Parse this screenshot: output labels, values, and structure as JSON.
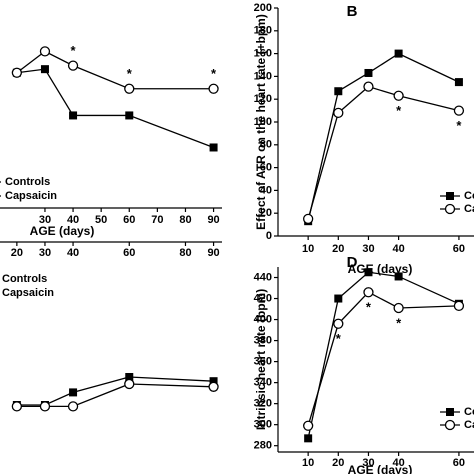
{
  "chart_data": [
    {
      "type": "line",
      "x": [
        20,
        30,
        40,
        60,
        90
      ],
      "xlim": [
        14,
        93
      ],
      "ylim": [
        0,
        100
      ],
      "xticks": [
        30,
        40,
        50,
        60,
        70,
        80,
        90
      ],
      "xlabel": "AGE (days)",
      "legend": "bottom-left",
      "series": [
        {
          "name": "Controls",
          "color": "#000000",
          "marker": "square",
          "values": [
            76,
            78,
            52,
            52,
            34
          ]
        },
        {
          "name": "Capsaicin",
          "color": "#000000",
          "marker": "circle",
          "values": [
            76,
            88,
            80,
            67,
            67
          ]
        }
      ],
      "annotations": [
        {
          "text": "*",
          "x": 40,
          "position": "above"
        },
        {
          "text": "*",
          "x": 60,
          "position": "above"
        },
        {
          "text": "*",
          "x": 90,
          "position": "above"
        }
      ]
    },
    {
      "type": "line",
      "label": "B",
      "x": [
        10,
        20,
        30,
        40,
        60
      ],
      "xlim": [
        0,
        65
      ],
      "ylim": [
        0,
        200
      ],
      "xticks": [
        10,
        20,
        30,
        40,
        60
      ],
      "yticks": [
        0,
        20,
        40,
        60,
        80,
        100,
        120,
        140,
        160,
        180,
        200
      ],
      "xlabel": "AGE (days)",
      "ylabel": "Effect of ATR on the heart rate (+bpm)",
      "legend": "bottom-right",
      "series": [
        {
          "name": "Controls",
          "color": "#000000",
          "marker": "square",
          "values": [
            13,
            127,
            143,
            160,
            135
          ]
        },
        {
          "name": "Capsaicin",
          "color": "#000000",
          "marker": "circle",
          "values": [
            15,
            108,
            131,
            123,
            110
          ]
        }
      ],
      "annotations": [
        {
          "text": "*",
          "x": 40,
          "position": "below"
        },
        {
          "text": "*",
          "x": 60,
          "position": "below"
        }
      ]
    },
    {
      "type": "line",
      "x": [
        20,
        30,
        40,
        60,
        90
      ],
      "xlim": [
        14,
        93
      ],
      "ylim": [
        0,
        100
      ],
      "xticks": [
        20,
        30,
        40,
        60,
        80,
        90
      ],
      "legend": "top-left",
      "series": [
        {
          "name": "Controls",
          "color": "#000000",
          "marker": "square",
          "values": [
            25,
            25,
            34,
            45,
            42
          ]
        },
        {
          "name": "Capsaicin",
          "color": "#000000",
          "marker": "circle",
          "values": [
            24,
            24,
            24,
            40,
            38
          ]
        }
      ]
    },
    {
      "type": "line",
      "label": "D",
      "x": [
        10,
        20,
        30,
        40,
        60
      ],
      "xlim": [
        0,
        65
      ],
      "ylim": [
        274,
        450
      ],
      "xticks": [
        10,
        20,
        30,
        40,
        60
      ],
      "yticks": [
        280,
        300,
        320,
        340,
        360,
        380,
        400,
        420,
        440
      ],
      "xlabel": "AGE (days)",
      "ylabel": "Intrinsic heart rate (bpm)",
      "legend": "bottom-right",
      "series": [
        {
          "name": "Controls",
          "color": "#000000",
          "marker": "square",
          "values": [
            287,
            420,
            445,
            441,
            415
          ]
        },
        {
          "name": "Capsaicin",
          "color": "#000000",
          "marker": "circle",
          "values": [
            299,
            396,
            426,
            411,
            413
          ]
        }
      ],
      "annotations": [
        {
          "text": "*",
          "x": 20,
          "position": "below"
        },
        {
          "text": "*",
          "x": 30,
          "position": "below"
        },
        {
          "text": "*",
          "x": 40,
          "position": "below"
        }
      ]
    }
  ]
}
